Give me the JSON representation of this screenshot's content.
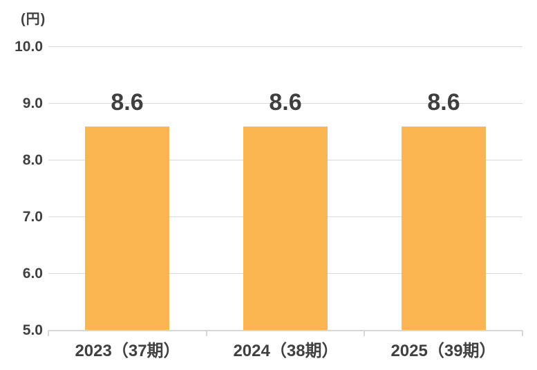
{
  "chart_data": {
    "type": "bar",
    "title": "",
    "unit_label": "(円)",
    "categories": [
      "2023（37期）",
      "2024（38期）",
      "2025（39期）"
    ],
    "values": [
      8.6,
      8.6,
      8.6
    ],
    "value_labels": [
      "8.6",
      "8.6",
      "8.6"
    ],
    "ylim": [
      5.0,
      10.0
    ],
    "yticks": [
      10.0,
      9.0,
      8.0,
      7.0,
      6.0,
      5.0
    ],
    "ytick_labels": [
      "10.0",
      "9.0",
      "8.0",
      "7.0",
      "6.0",
      "5.0"
    ],
    "xlabel": "",
    "ylabel": "",
    "grid": true,
    "legend_position": "none",
    "bar_color": "#FCB651",
    "text_color": "#404040",
    "gridline_color": "#D9D9D9",
    "axis_color": "#D6D6D6"
  }
}
